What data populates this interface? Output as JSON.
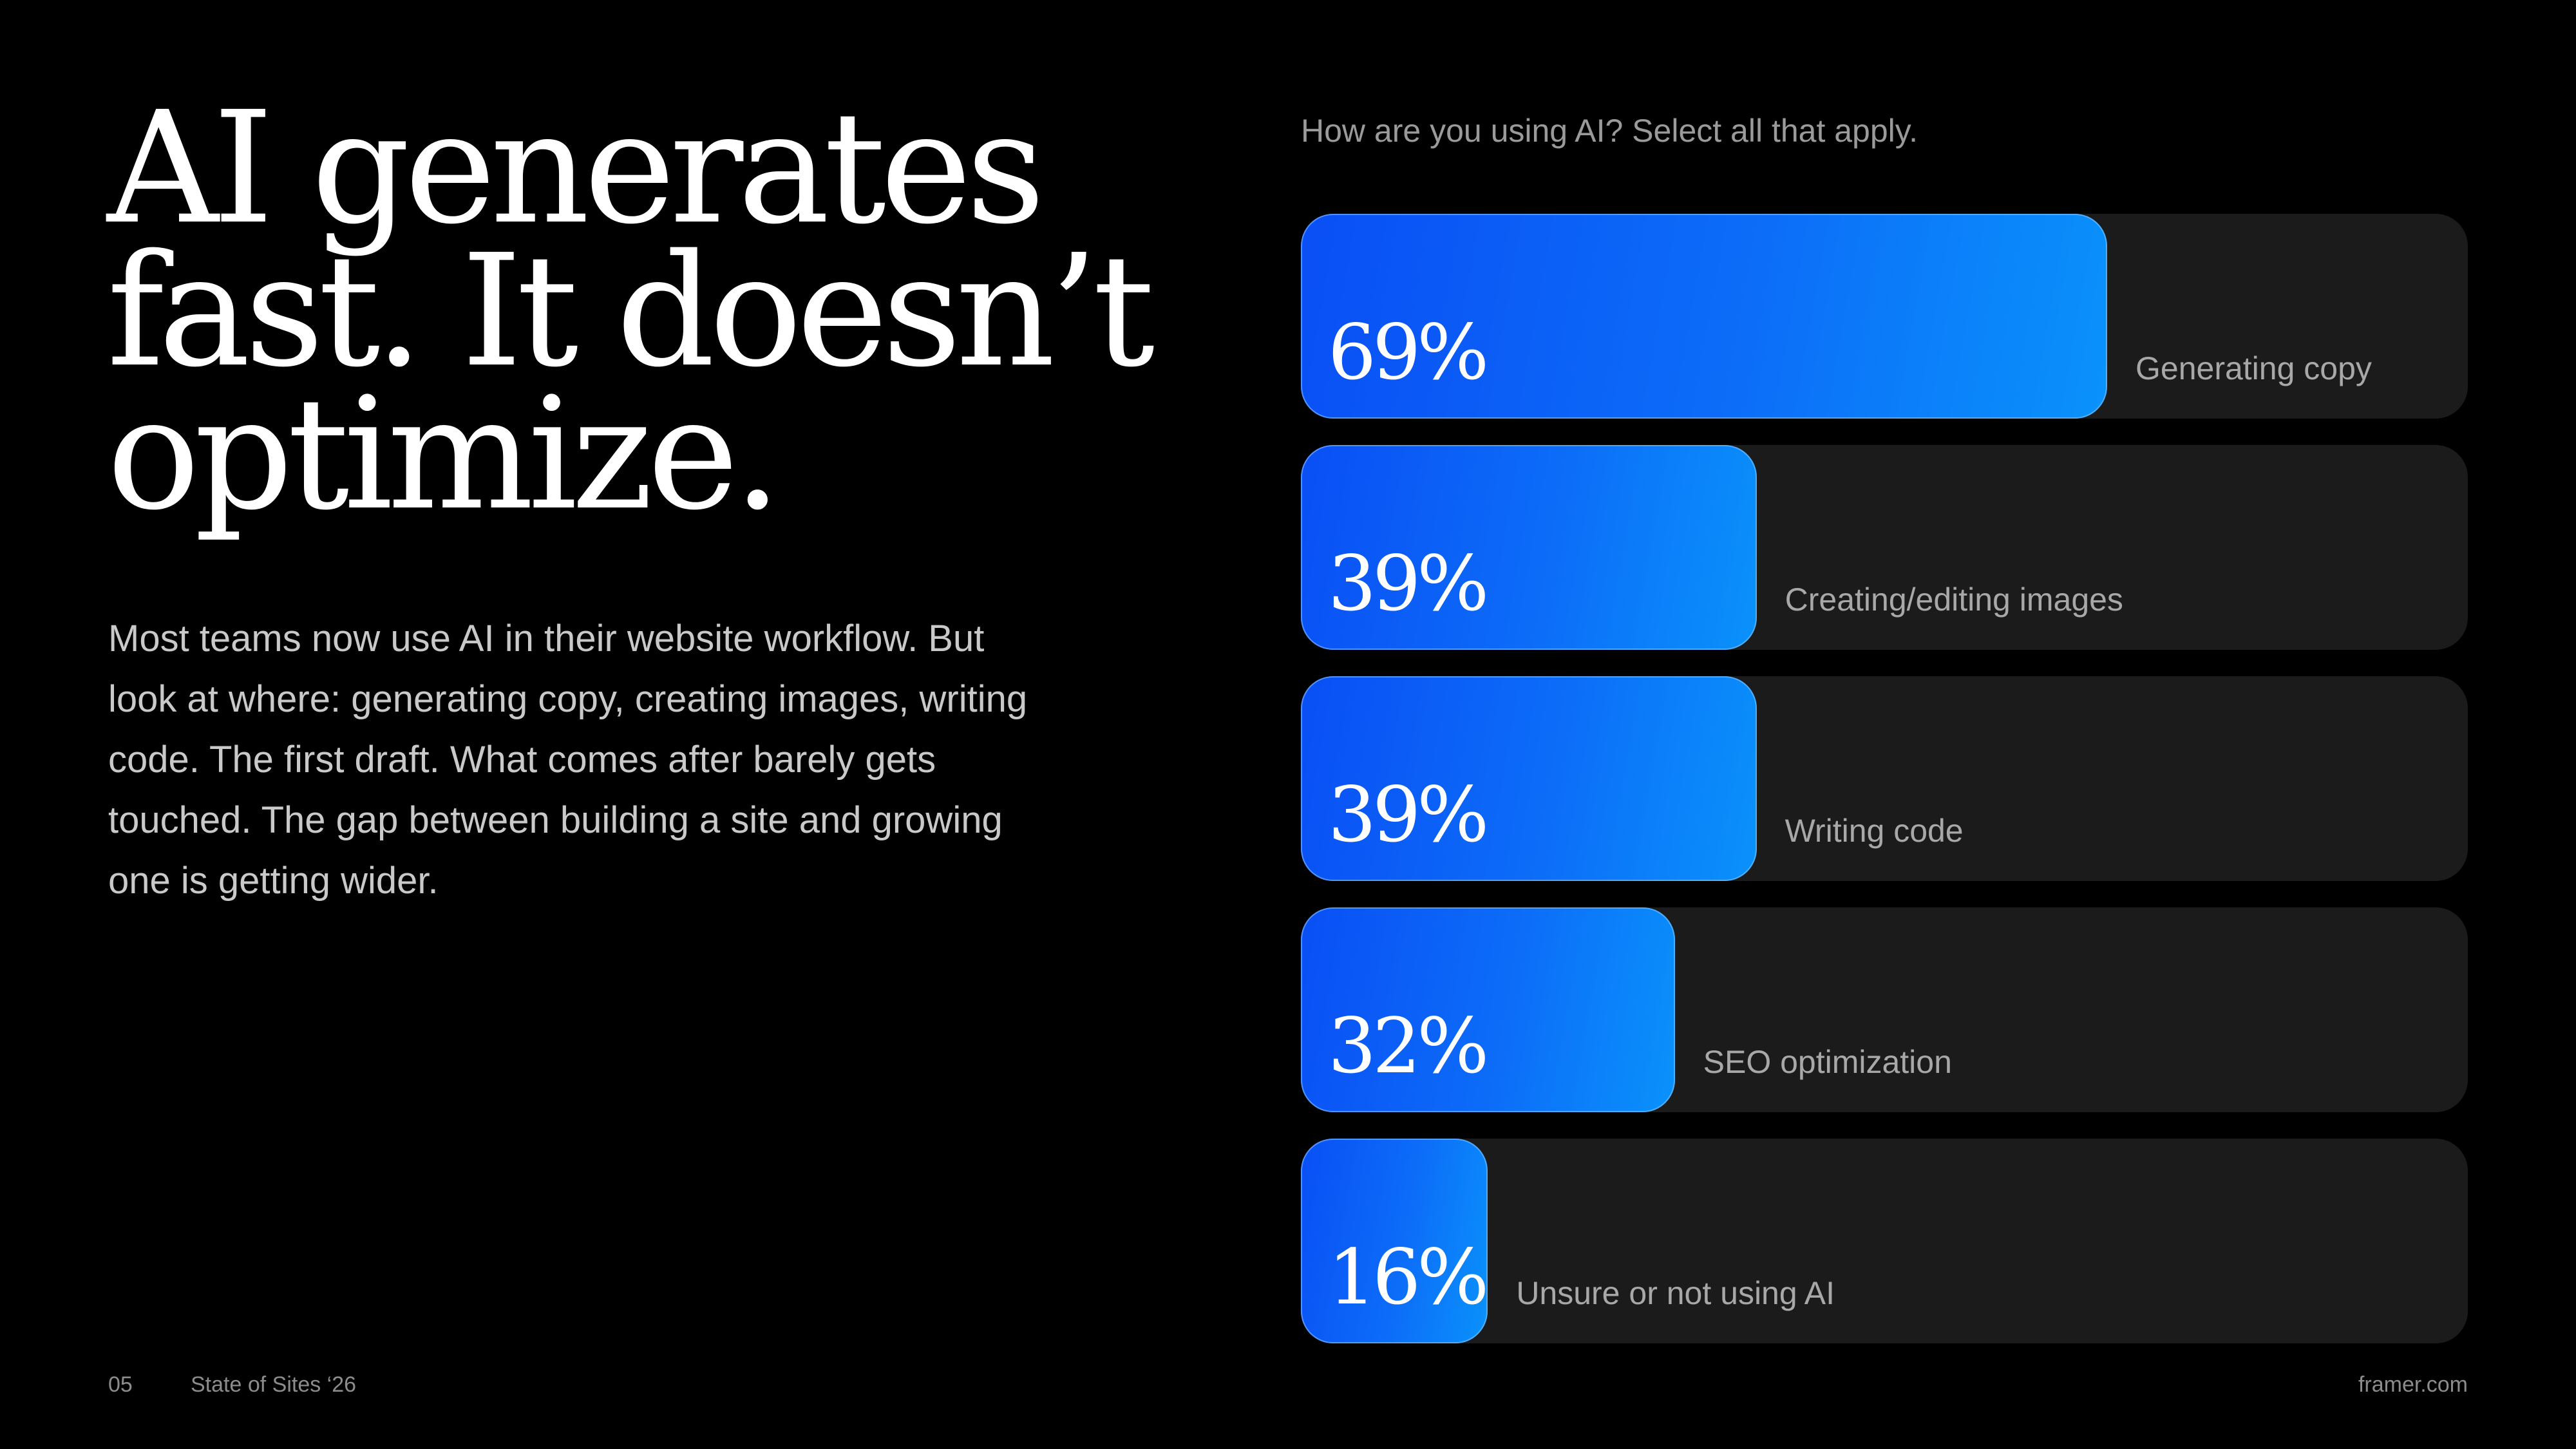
{
  "headline": {
    "line1": "AI generates",
    "line2": "fast. It doesn’t",
    "line3": "optimize."
  },
  "body_text": "Most teams now use AI in their website workflow. But look at where: generating copy, creating images, writing code. The first draft. What comes after barely gets touched. The gap between building a site and growing one is getting wider.",
  "footer": {
    "page_number": "05",
    "report_name": "State of Sites ‘26",
    "site": "framer.com"
  },
  "colors": {
    "background": "#000000",
    "track": "#1b1b1b",
    "bar_start": "#0a4ff5",
    "bar_end": "#0a92fb"
  },
  "chart_data": {
    "type": "bar",
    "orientation": "horizontal",
    "title": "How are you using AI? Select all that apply.",
    "categories": [
      "Generating copy",
      "Creating/editing images",
      "Writing code",
      "SEO optimization",
      "Unsure or not using AI"
    ],
    "values": [
      69,
      39,
      39,
      32,
      16
    ],
    "value_labels": [
      "69%",
      "39%",
      "39%",
      "32%",
      "16%"
    ],
    "xlim": [
      0,
      100
    ],
    "grid": false,
    "legend": "none"
  }
}
